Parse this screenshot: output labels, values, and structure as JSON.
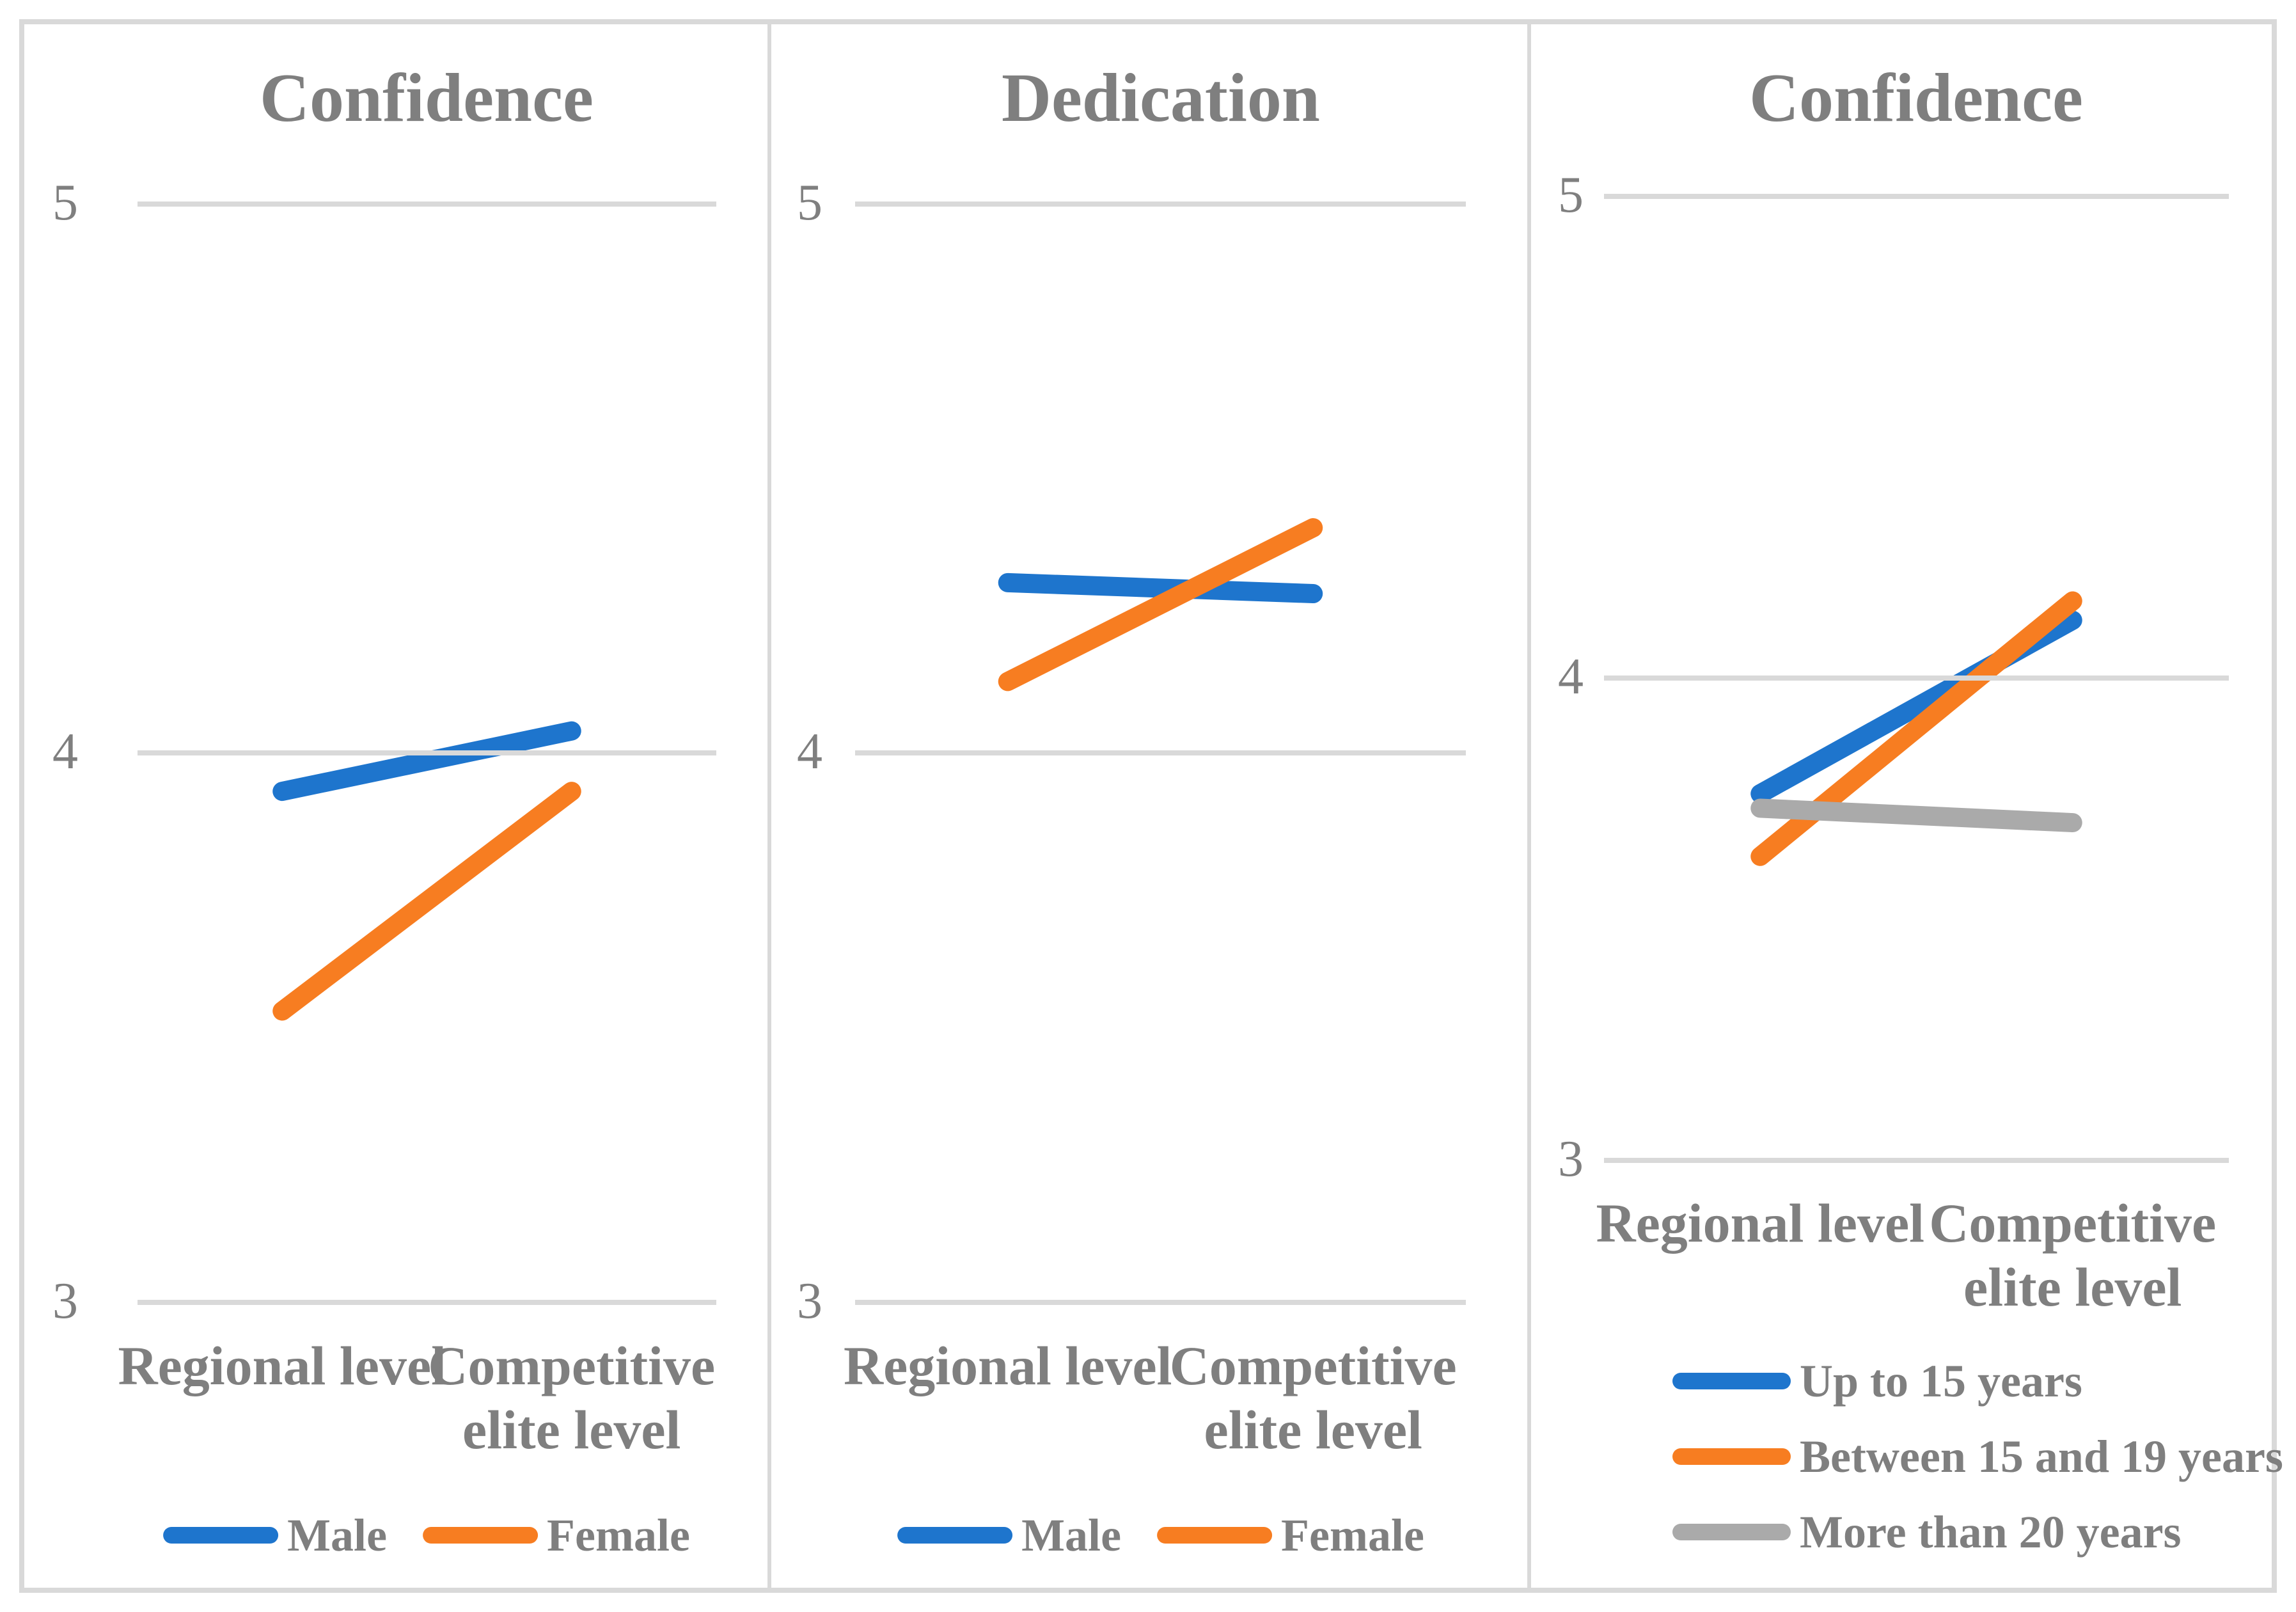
{
  "figure": {
    "background": "#FFFFFF",
    "frame_color": "#D9D9D9",
    "gridline_color": "#D9D9D9",
    "text_color": "#7F7F7F"
  },
  "series_palette": {
    "blue": "#1E75CD",
    "orange": "#F77D21",
    "gray": "#AAAAAA"
  },
  "chart_data": [
    {
      "type": "line",
      "title": "Confidence",
      "categories": [
        "Regional level",
        "Competitive elite level"
      ],
      "y_ticks": [
        5,
        4,
        3
      ],
      "ylim": [
        3,
        5
      ],
      "grid": true,
      "legend_position": "bottom-center",
      "series": [
        {
          "name": "Male",
          "color": "#1E75CD",
          "values": [
            3.93,
            4.04
          ]
        },
        {
          "name": "Female",
          "color": "#F77D21",
          "values": [
            3.53,
            3.93
          ]
        }
      ]
    },
    {
      "type": "line",
      "title": "Dedication",
      "categories": [
        "Regional level",
        "Competitive elite level"
      ],
      "y_ticks": [
        5,
        4,
        3
      ],
      "ylim": [
        3,
        5
      ],
      "grid": true,
      "legend_position": "bottom-center",
      "series": [
        {
          "name": "Male",
          "color": "#1E75CD",
          "values": [
            4.31,
            4.29
          ]
        },
        {
          "name": "Female",
          "color": "#F77D21",
          "values": [
            4.13,
            4.41
          ]
        }
      ]
    },
    {
      "type": "line",
      "title": "Confidence",
      "categories": [
        "Regional level",
        "Competitive elite level"
      ],
      "y_ticks": [
        5,
        4,
        3
      ],
      "ylim": [
        3,
        5
      ],
      "grid": true,
      "legend_position": "bottom-left-stack",
      "series": [
        {
          "name": "Up to 15 years",
          "color": "#1E75CD",
          "values": [
            3.76,
            4.12
          ]
        },
        {
          "name": "Between 15 and 19 years",
          "color": "#F77D21",
          "values": [
            3.63,
            4.16
          ]
        },
        {
          "name": "More than 20 years",
          "color": "#AAAAAA",
          "values": [
            3.73,
            3.7
          ]
        }
      ]
    }
  ]
}
